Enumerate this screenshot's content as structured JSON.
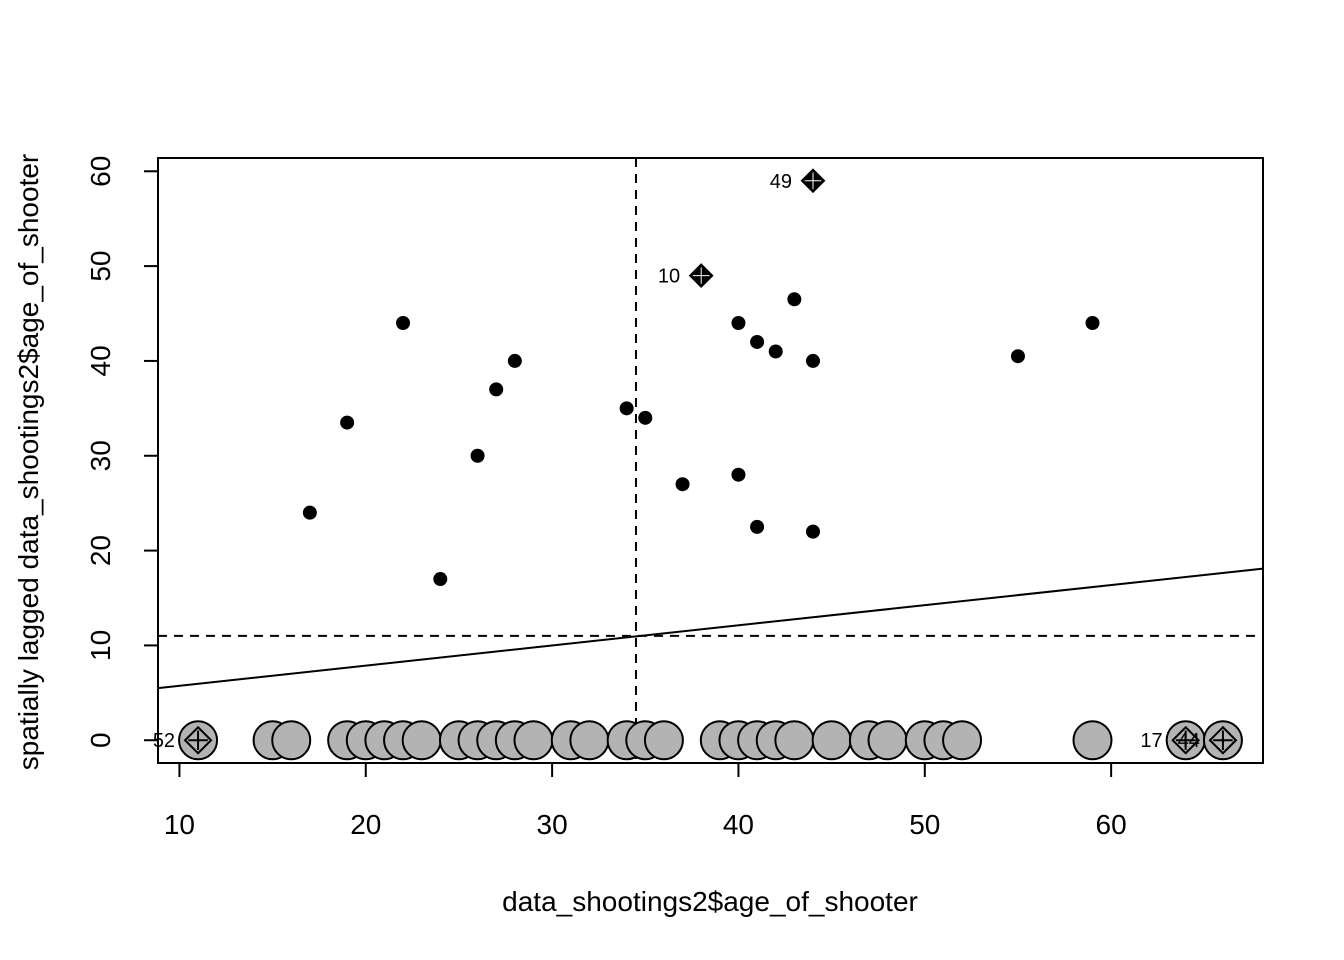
{
  "chart_data": {
    "type": "scatter",
    "title": "",
    "xlabel": "data_shootings2$age_of_shooter",
    "ylabel": "spatially lagged data_shootings2$age_of_shooter",
    "xlim": [
      8.85,
      68.15
    ],
    "ylim": [
      -2.4,
      61.4
    ],
    "xticks": [
      10,
      20,
      30,
      40,
      50,
      60
    ],
    "yticks": [
      0,
      10,
      20,
      30,
      40,
      50,
      60
    ],
    "reference_lines": {
      "vertical_dashed_x": 34.5,
      "horizontal_dashed_y": 11.0,
      "regression_line": {
        "x": [
          8.85,
          68.15
        ],
        "y": [
          5.5,
          18.1
        ]
      }
    },
    "series": [
      {
        "role": "small-black-points",
        "points": [
          [
            17,
            24
          ],
          [
            19,
            33.5
          ],
          [
            22,
            44
          ],
          [
            24,
            17
          ],
          [
            26,
            30
          ],
          [
            27,
            37
          ],
          [
            28,
            40
          ],
          [
            34,
            35
          ],
          [
            35,
            34
          ],
          [
            37,
            27
          ],
          [
            40,
            44
          ],
          [
            40,
            28
          ],
          [
            41,
            42
          ],
          [
            41,
            22.5
          ],
          [
            42,
            41
          ],
          [
            43,
            46.5
          ],
          [
            44,
            40
          ],
          [
            44,
            22
          ],
          [
            55,
            40.5
          ],
          [
            59,
            44
          ]
        ]
      },
      {
        "role": "influential-high",
        "points": [
          {
            "x": 38,
            "y": 49,
            "label": "10"
          },
          {
            "x": 44,
            "y": 59,
            "label": "49"
          }
        ]
      },
      {
        "role": "zero-lag-gray",
        "points": [
          11,
          15,
          16,
          19,
          20,
          21,
          22,
          23,
          25,
          26,
          27,
          28,
          29,
          31,
          32,
          34,
          35,
          36,
          39,
          40,
          41,
          42,
          43,
          45,
          47,
          48,
          50,
          51,
          52,
          59,
          64,
          66
        ]
      },
      {
        "role": "influential-low",
        "points": [
          {
            "x": 11,
            "y": 0,
            "label": "52"
          },
          {
            "x": 64,
            "y": 0,
            "label": "17"
          },
          {
            "x": 66,
            "y": 0,
            "label": "44"
          }
        ]
      }
    ],
    "colors": {
      "gray_fill": "#b3b3b3",
      "ink": "#000000"
    }
  }
}
